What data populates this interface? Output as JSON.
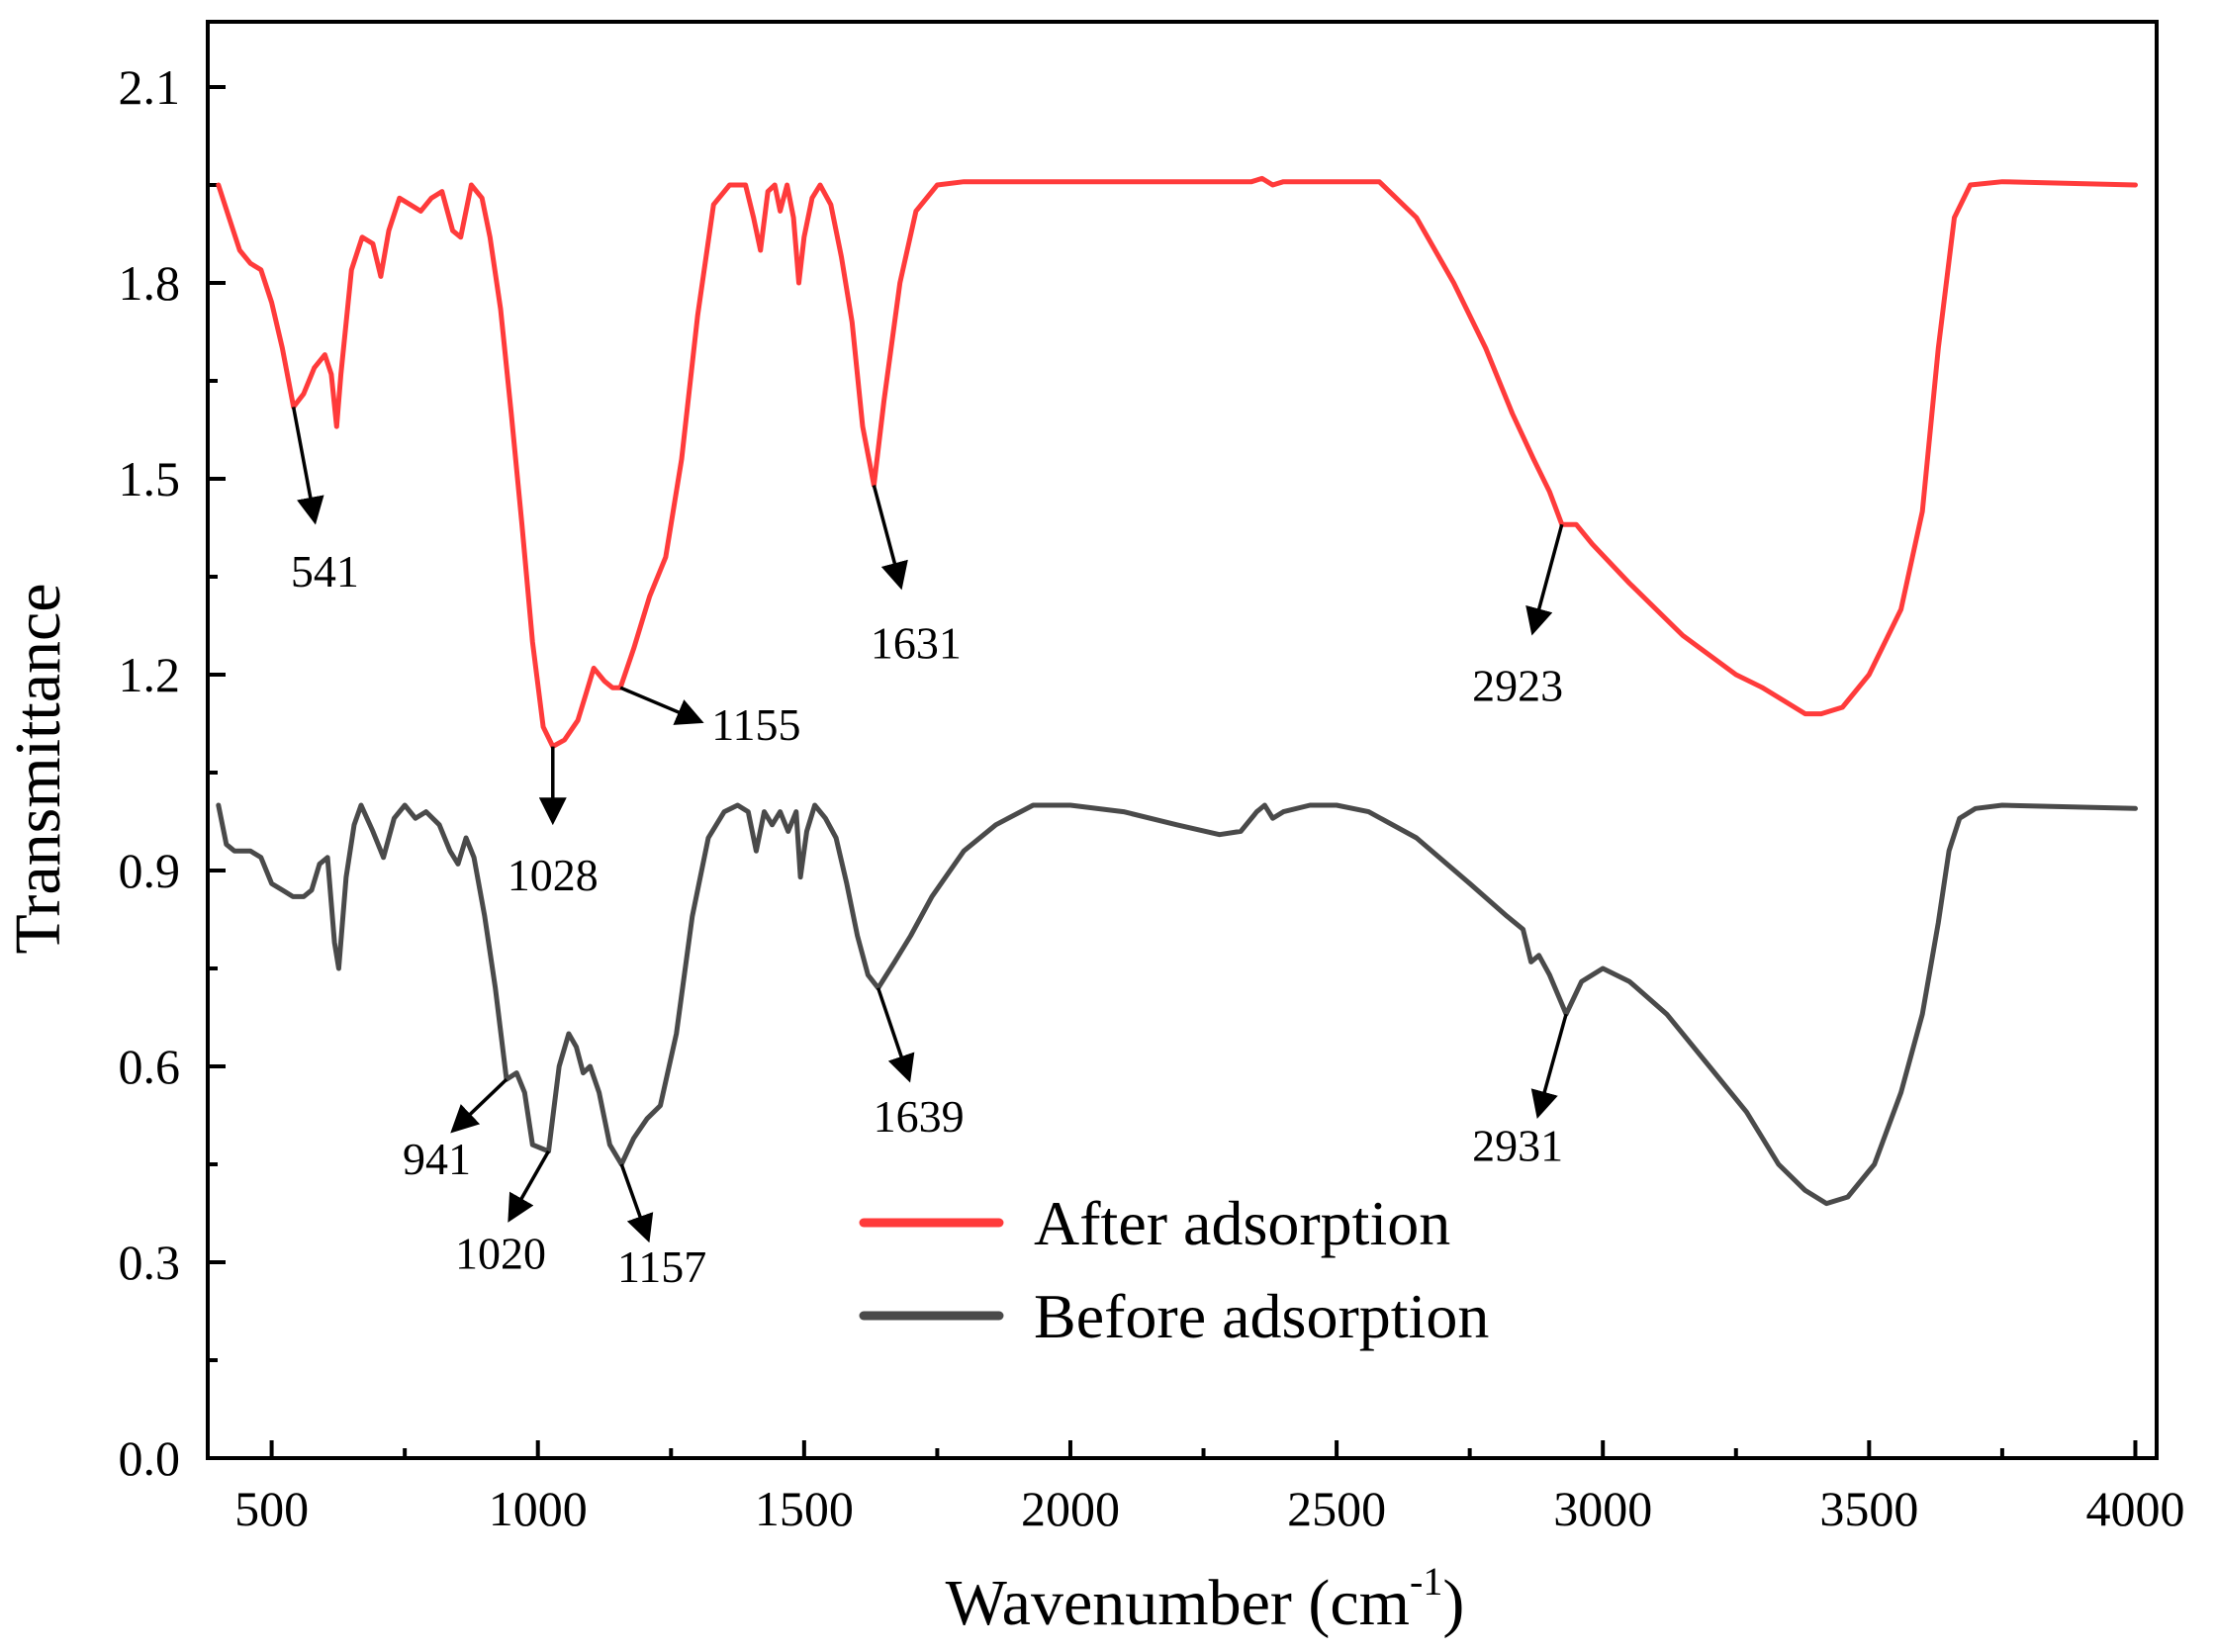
{
  "chart_data": {
    "type": "line",
    "title": "",
    "xlabel_main": "Wavenumber (cm",
    "xlabel_sup": "-1",
    "xlabel_tail": ")",
    "ylabel": "Transmittance",
    "xlim": [
      380,
      4040
    ],
    "ylim": [
      0,
      2.2
    ],
    "xticks": [
      500,
      1000,
      1500,
      2000,
      2500,
      3000,
      3500,
      4000
    ],
    "xtick_labels": [
      "500",
      "1000",
      "1500",
      "2000",
      "2500",
      "3000",
      "3500",
      "4000"
    ],
    "yticks": [
      0.0,
      0.3,
      0.6,
      0.9,
      1.2,
      1.5,
      1.8,
      2.1
    ],
    "ytick_labels": [
      "0.0",
      "0.3",
      "0.6",
      "0.9",
      "1.2",
      "1.5",
      "1.8",
      "2.1"
    ],
    "legend_position": "bottom-center",
    "series": [
      {
        "name": "After adsorption",
        "color": "#ff3b3b",
        "points": [
          [
            400,
            1.95
          ],
          [
            420,
            1.9
          ],
          [
            440,
            1.85
          ],
          [
            460,
            1.83
          ],
          [
            480,
            1.82
          ],
          [
            500,
            1.77
          ],
          [
            520,
            1.7
          ],
          [
            541,
            1.61
          ],
          [
            560,
            1.63
          ],
          [
            580,
            1.67
          ],
          [
            600,
            1.69
          ],
          [
            612,
            1.66
          ],
          [
            622,
            1.58
          ],
          [
            630,
            1.66
          ],
          [
            650,
            1.82
          ],
          [
            670,
            1.87
          ],
          [
            690,
            1.86
          ],
          [
            705,
            1.81
          ],
          [
            720,
            1.88
          ],
          [
            740,
            1.93
          ],
          [
            760,
            1.92
          ],
          [
            780,
            1.91
          ],
          [
            800,
            1.93
          ],
          [
            820,
            1.94
          ],
          [
            840,
            1.88
          ],
          [
            855,
            1.87
          ],
          [
            875,
            1.95
          ],
          [
            895,
            1.93
          ],
          [
            910,
            1.87
          ],
          [
            930,
            1.76
          ],
          [
            950,
            1.6
          ],
          [
            970,
            1.43
          ],
          [
            990,
            1.25
          ],
          [
            1010,
            1.12
          ],
          [
            1028,
            1.09
          ],
          [
            1050,
            1.1
          ],
          [
            1075,
            1.13
          ],
          [
            1090,
            1.17
          ],
          [
            1105,
            1.21
          ],
          [
            1125,
            1.19
          ],
          [
            1140,
            1.18
          ],
          [
            1155,
            1.18
          ],
          [
            1180,
            1.24
          ],
          [
            1210,
            1.32
          ],
          [
            1240,
            1.38
          ],
          [
            1270,
            1.53
          ],
          [
            1300,
            1.75
          ],
          [
            1330,
            1.92
          ],
          [
            1360,
            1.95
          ],
          [
            1390,
            1.95
          ],
          [
            1405,
            1.9
          ],
          [
            1418,
            1.85
          ],
          [
            1432,
            1.94
          ],
          [
            1445,
            1.95
          ],
          [
            1455,
            1.91
          ],
          [
            1468,
            1.95
          ],
          [
            1480,
            1.9
          ],
          [
            1490,
            1.8
          ],
          [
            1500,
            1.87
          ],
          [
            1515,
            1.93
          ],
          [
            1530,
            1.95
          ],
          [
            1550,
            1.92
          ],
          [
            1570,
            1.84
          ],
          [
            1590,
            1.74
          ],
          [
            1610,
            1.58
          ],
          [
            1631,
            1.49
          ],
          [
            1650,
            1.62
          ],
          [
            1680,
            1.8
          ],
          [
            1710,
            1.91
          ],
          [
            1750,
            1.95
          ],
          [
            1800,
            1.955
          ],
          [
            2000,
            1.955
          ],
          [
            2200,
            1.955
          ],
          [
            2340,
            1.955
          ],
          [
            2360,
            1.96
          ],
          [
            2380,
            1.95
          ],
          [
            2400,
            1.955
          ],
          [
            2580,
            1.955
          ],
          [
            2650,
            1.9
          ],
          [
            2720,
            1.8
          ],
          [
            2780,
            1.7
          ],
          [
            2830,
            1.6
          ],
          [
            2870,
            1.53
          ],
          [
            2900,
            1.48
          ],
          [
            2923,
            1.43
          ],
          [
            2950,
            1.43
          ],
          [
            2980,
            1.4
          ],
          [
            3050,
            1.34
          ],
          [
            3150,
            1.26
          ],
          [
            3250,
            1.2
          ],
          [
            3300,
            1.18
          ],
          [
            3340,
            1.16
          ],
          [
            3380,
            1.14
          ],
          [
            3410,
            1.14
          ],
          [
            3450,
            1.15
          ],
          [
            3500,
            1.2
          ],
          [
            3560,
            1.3
          ],
          [
            3600,
            1.45
          ],
          [
            3630,
            1.7
          ],
          [
            3660,
            1.9
          ],
          [
            3690,
            1.95
          ],
          [
            3750,
            1.955
          ],
          [
            4000,
            1.95
          ]
        ]
      },
      {
        "name": "Before adsorption",
        "color": "#4a4a4a",
        "points": [
          [
            400,
            1.0
          ],
          [
            415,
            0.94
          ],
          [
            430,
            0.93
          ],
          [
            460,
            0.93
          ],
          [
            480,
            0.92
          ],
          [
            500,
            0.88
          ],
          [
            520,
            0.87
          ],
          [
            540,
            0.86
          ],
          [
            560,
            0.86
          ],
          [
            575,
            0.87
          ],
          [
            590,
            0.91
          ],
          [
            605,
            0.92
          ],
          [
            618,
            0.79
          ],
          [
            626,
            0.75
          ],
          [
            640,
            0.89
          ],
          [
            655,
            0.97
          ],
          [
            668,
            1.0
          ],
          [
            690,
            0.96
          ],
          [
            710,
            0.92
          ],
          [
            730,
            0.98
          ],
          [
            750,
            1.0
          ],
          [
            770,
            0.98
          ],
          [
            790,
            0.99
          ],
          [
            815,
            0.97
          ],
          [
            835,
            0.93
          ],
          [
            850,
            0.91
          ],
          [
            865,
            0.95
          ],
          [
            880,
            0.92
          ],
          [
            900,
            0.83
          ],
          [
            920,
            0.72
          ],
          [
            941,
            0.58
          ],
          [
            960,
            0.59
          ],
          [
            975,
            0.56
          ],
          [
            990,
            0.48
          ],
          [
            1020,
            0.47
          ],
          [
            1040,
            0.6
          ],
          [
            1058,
            0.65
          ],
          [
            1072,
            0.63
          ],
          [
            1085,
            0.59
          ],
          [
            1098,
            0.6
          ],
          [
            1115,
            0.56
          ],
          [
            1135,
            0.48
          ],
          [
            1157,
            0.45
          ],
          [
            1180,
            0.49
          ],
          [
            1205,
            0.52
          ],
          [
            1230,
            0.54
          ],
          [
            1260,
            0.65
          ],
          [
            1290,
            0.83
          ],
          [
            1320,
            0.95
          ],
          [
            1350,
            0.99
          ],
          [
            1375,
            1.0
          ],
          [
            1395,
            0.99
          ],
          [
            1410,
            0.93
          ],
          [
            1425,
            0.99
          ],
          [
            1440,
            0.97
          ],
          [
            1455,
            0.99
          ],
          [
            1470,
            0.96
          ],
          [
            1485,
            0.99
          ],
          [
            1493,
            0.89
          ],
          [
            1505,
            0.96
          ],
          [
            1520,
            1.0
          ],
          [
            1540,
            0.98
          ],
          [
            1560,
            0.95
          ],
          [
            1580,
            0.88
          ],
          [
            1600,
            0.8
          ],
          [
            1620,
            0.74
          ],
          [
            1639,
            0.72
          ],
          [
            1670,
            0.76
          ],
          [
            1700,
            0.8
          ],
          [
            1740,
            0.86
          ],
          [
            1800,
            0.93
          ],
          [
            1860,
            0.97
          ],
          [
            1930,
            1.0
          ],
          [
            2000,
            1.0
          ],
          [
            2100,
            0.99
          ],
          [
            2200,
            0.97
          ],
          [
            2280,
            0.955
          ],
          [
            2320,
            0.96
          ],
          [
            2350,
            0.99
          ],
          [
            2365,
            1.0
          ],
          [
            2380,
            0.98
          ],
          [
            2400,
            0.99
          ],
          [
            2450,
            1.0
          ],
          [
            2500,
            1.0
          ],
          [
            2560,
            0.99
          ],
          [
            2650,
            0.95
          ],
          [
            2750,
            0.88
          ],
          [
            2820,
            0.83
          ],
          [
            2850,
            0.81
          ],
          [
            2865,
            0.76
          ],
          [
            2880,
            0.77
          ],
          [
            2900,
            0.74
          ],
          [
            2931,
            0.68
          ],
          [
            2960,
            0.73
          ],
          [
            3000,
            0.75
          ],
          [
            3050,
            0.73
          ],
          [
            3120,
            0.68
          ],
          [
            3200,
            0.6
          ],
          [
            3270,
            0.53
          ],
          [
            3330,
            0.45
          ],
          [
            3380,
            0.41
          ],
          [
            3420,
            0.39
          ],
          [
            3460,
            0.4
          ],
          [
            3510,
            0.45
          ],
          [
            3560,
            0.56
          ],
          [
            3600,
            0.68
          ],
          [
            3630,
            0.82
          ],
          [
            3650,
            0.93
          ],
          [
            3670,
            0.98
          ],
          [
            3700,
            0.995
          ],
          [
            3750,
            1.0
          ],
          [
            4000,
            0.995
          ]
        ]
      }
    ],
    "annotations": [
      {
        "text": "541",
        "peak": [
          541,
          1.61
        ],
        "tip": [
          580,
          1.44
        ],
        "label": [
          600,
          1.335
        ]
      },
      {
        "text": "1631",
        "peak": [
          1631,
          1.49
        ],
        "tip": [
          1680,
          1.34
        ],
        "label": [
          1710,
          1.225
        ]
      },
      {
        "text": "2923",
        "peak": [
          2923,
          1.43
        ],
        "tip": [
          2870,
          1.27
        ],
        "label": [
          2840,
          1.16
        ]
      },
      {
        "text": "1028",
        "peak": [
          1028,
          1.09
        ],
        "tip": [
          1028,
          0.98
        ],
        "label": [
          1028,
          0.87
        ]
      },
      {
        "text": "1155",
        "peak": [
          1155,
          1.18
        ],
        "tip": [
          1300,
          1.13
        ],
        "label": [
          1410,
          1.1
        ]
      },
      {
        "text": "941",
        "peak": [
          941,
          0.58
        ],
        "tip": [
          845,
          0.505
        ],
        "label": [
          810,
          0.435
        ]
      },
      {
        "text": "1020",
        "peak": [
          1020,
          0.47
        ],
        "tip": [
          950,
          0.37
        ],
        "label": [
          930,
          0.29
        ]
      },
      {
        "text": "1157",
        "peak": [
          1157,
          0.45
        ],
        "tip": [
          1205,
          0.34
        ],
        "label": [
          1233,
          0.27
        ]
      },
      {
        "text": "1639",
        "peak": [
          1639,
          0.72
        ],
        "tip": [
          1695,
          0.585
        ],
        "label": [
          1715,
          0.5
        ]
      },
      {
        "text": "2931",
        "peak": [
          2931,
          0.68
        ],
        "tip": [
          2880,
          0.53
        ],
        "label": [
          2840,
          0.455
        ]
      }
    ]
  }
}
